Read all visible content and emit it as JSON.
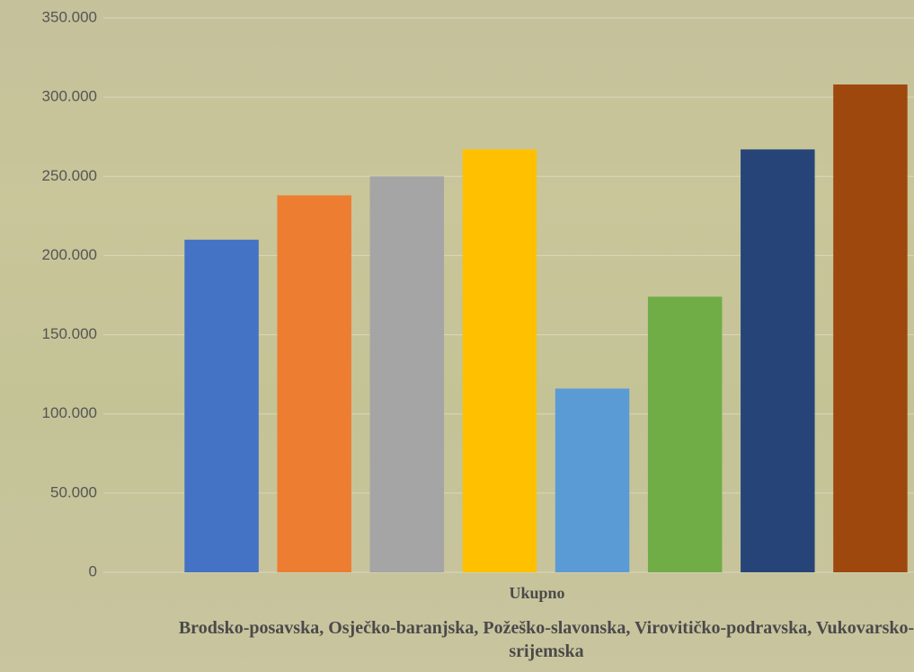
{
  "chart_data": {
    "type": "bar",
    "categories": [
      "Ukupno"
    ],
    "xlabel": "Brodsko-posavska, Osječko-baranjska, Požeško-slavonska, Virovitičko-podravska, Vukovarsko-srijemska",
    "series": [
      {
        "color": "#4472c4",
        "values": [
          210000
        ]
      },
      {
        "color": "#ed7d31",
        "values": [
          238000
        ]
      },
      {
        "color": "#a5a5a5",
        "values": [
          250000
        ]
      },
      {
        "color": "#ffc000",
        "values": [
          267000
        ]
      },
      {
        "color": "#5b9bd5",
        "values": [
          116000
        ]
      },
      {
        "color": "#70ad47",
        "values": [
          174000
        ]
      },
      {
        "color": "#264478",
        "values": [
          267000
        ]
      },
      {
        "color": "#9e480e",
        "values": [
          308000
        ]
      }
    ],
    "ylim": [
      0,
      350000
    ],
    "yticks": [
      0,
      {
        "value": 50000,
        "label": "50.000"
      },
      {
        "value": 100000,
        "label": "100.000"
      },
      {
        "value": 150000,
        "label": "150.000"
      },
      {
        "value": 200000,
        "label": "200.000"
      },
      {
        "value": 250000,
        "label": "250.000"
      },
      {
        "value": 300000,
        "label": "300.000"
      },
      {
        "value": 350000,
        "label": "350.000"
      }
    ],
    "grid": true
  }
}
